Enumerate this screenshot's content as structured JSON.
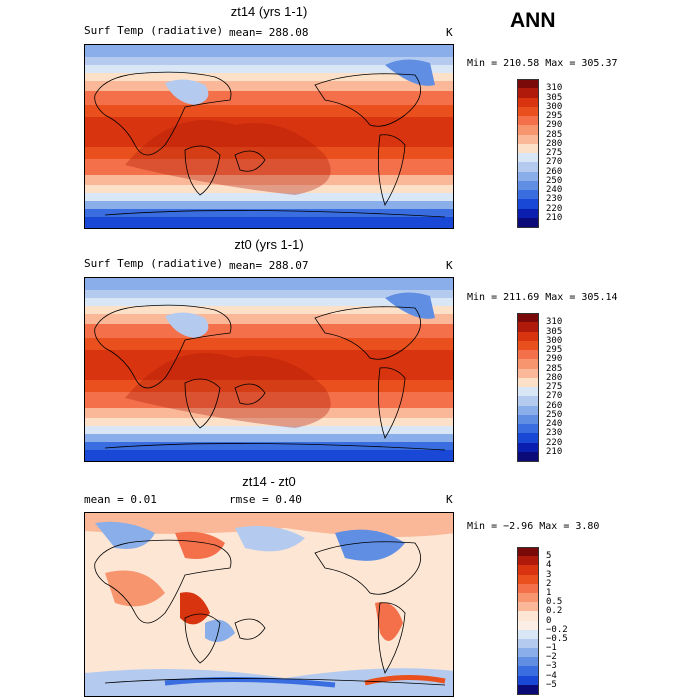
{
  "page_title": "ANN",
  "units": "K",
  "chart_data": [
    {
      "type": "heatmap",
      "title": "zt14 (yrs 1-1)",
      "variable": "Surf Temp (radiative)",
      "mean_label": "mean= 288.08",
      "units": "K",
      "minmax": "Min = 210.58 Max = 305.37",
      "colorbar_levels": [
        "310",
        "305",
        "300",
        "295",
        "290",
        "285",
        "280",
        "275",
        "270",
        "260",
        "250",
        "240",
        "230",
        "220",
        "210"
      ],
      "colorbar_colors": [
        "#7a0a0a",
        "#b01a0a",
        "#d8340f",
        "#e9501d",
        "#f3704a",
        "#f7956f",
        "#fab898",
        "#fde0c8",
        "#d9e6f6",
        "#b4cbef",
        "#8aaee9",
        "#5f8ee3",
        "#3a6ee0",
        "#1948d6",
        "#0a1fb0",
        "#0a0a78"
      ]
    },
    {
      "type": "heatmap",
      "title": "zt0 (yrs 1-1)",
      "variable": "Surf Temp (radiative)",
      "mean_label": "mean= 288.07",
      "units": "K",
      "minmax": "Min = 211.69 Max = 305.14",
      "colorbar_levels": [
        "310",
        "305",
        "300",
        "295",
        "290",
        "285",
        "280",
        "275",
        "270",
        "260",
        "250",
        "240",
        "230",
        "220",
        "210"
      ],
      "colorbar_colors": [
        "#7a0a0a",
        "#b01a0a",
        "#d8340f",
        "#e9501d",
        "#f3704a",
        "#f7956f",
        "#fab898",
        "#fde0c8",
        "#d9e6f6",
        "#b4cbef",
        "#8aaee9",
        "#5f8ee3",
        "#3a6ee0",
        "#1948d6",
        "#0a1fb0",
        "#0a0a78"
      ]
    },
    {
      "type": "heatmap",
      "title": "zt14 - zt0",
      "mean_label": "mean =    0.01",
      "rmse_label": "rmse =    0.40",
      "units": "K",
      "minmax": "Min =  −2.96 Max =   3.80",
      "colorbar_levels": [
        "5",
        "4",
        "3",
        "2",
        "1",
        "0.5",
        "0.2",
        "0",
        "−0.2",
        "−0.5",
        "−1",
        "−2",
        "−3",
        "−4",
        "−5"
      ],
      "colorbar_colors": [
        "#7a0a0a",
        "#b01a0a",
        "#d8340f",
        "#e9501d",
        "#f3704a",
        "#f7956f",
        "#fab898",
        "#fde6d4",
        "#fbeee4",
        "#d9e6f6",
        "#b4cbef",
        "#8aaee9",
        "#5f8ee3",
        "#3a6ee0",
        "#1948d6",
        "#0a0a78"
      ]
    }
  ]
}
